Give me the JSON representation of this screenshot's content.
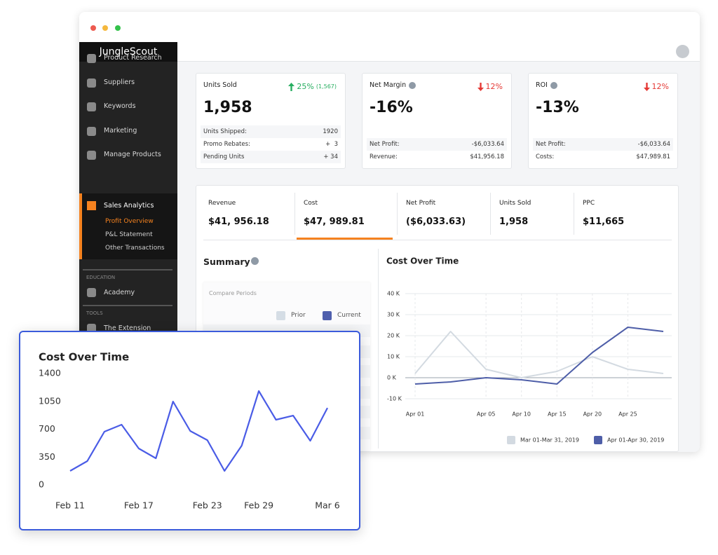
{
  "window": {
    "brand": "JungleScout"
  },
  "sidebar": {
    "items": [
      "Product Research",
      "Suppliers",
      "Keywords",
      "Marketing",
      "Manage Products"
    ],
    "active": {
      "label": "Sales Analytics",
      "subitems": [
        "Profit Overview",
        "P&L Statement",
        "Other Transactions"
      ]
    },
    "sections": [
      {
        "heading": "EDUCATION",
        "items": [
          "Academy"
        ]
      },
      {
        "heading": "TOOLS",
        "items": [
          "The Extension"
        ]
      }
    ]
  },
  "kpi_cards": [
    {
      "title": "Units Sold",
      "direction": "up",
      "change": "25%",
      "change_detail": "(1,567)",
      "value": "1,958",
      "rows": [
        [
          "Units Shipped:",
          "1920"
        ],
        [
          "Promo Rebates:",
          "+  3"
        ],
        [
          "Pending Units",
          "+ 34"
        ]
      ]
    },
    {
      "title": "Net Margin",
      "direction": "down",
      "change": "12%",
      "value": "-16%",
      "rows": [
        [
          "Net Profit:",
          "-$6,033.64"
        ],
        [
          "Revenue:",
          "$41,956.18"
        ]
      ]
    },
    {
      "title": "ROI",
      "direction": "down",
      "change": "12%",
      "value": "-13%",
      "rows": [
        [
          "Net Profit:",
          "-$6,033.64"
        ],
        [
          "Costs:",
          "$47,989.81"
        ]
      ]
    }
  ],
  "tabs": [
    {
      "label": "Revenue",
      "value": "$41, 956.18"
    },
    {
      "label": "Cost",
      "value": "$47, 989.81",
      "active": true
    },
    {
      "label": "Net Profit",
      "value": "($6,033.63)"
    },
    {
      "label": "Units Sold",
      "value": "1,958"
    },
    {
      "label": "PPC",
      "value": "$11,665"
    }
  ],
  "summary": {
    "title": "Summary",
    "compare_label": "Compare Periods",
    "legend": [
      {
        "name": "Prior",
        "color": "#d5dde5"
      },
      {
        "name": "Current",
        "color": "#4f5fad"
      }
    ]
  },
  "chart_data": [
    {
      "type": "line",
      "title": "Cost Over Time",
      "categories": [
        "Apr 01",
        null,
        "Apr 05",
        "Apr 10",
        "Apr 15",
        "Apr 20",
        "Apr 25",
        null
      ],
      "series": [
        {
          "name": "Mar 01-Mar 31, 2019",
          "color": "#d3dae1",
          "values": [
            2000,
            22000,
            4000,
            0,
            3000,
            10000,
            4000,
            2000
          ]
        },
        {
          "name": "Apr 01-Apr 30, 2019",
          "color": "#4e5ea8",
          "values": [
            -3000,
            -2000,
            0,
            -1000,
            -3000,
            12000,
            24000,
            22000
          ]
        }
      ],
      "ylim": [
        -10000,
        40000
      ],
      "yticks": [
        {
          "value": -10000,
          "label": "-10 K"
        },
        {
          "value": 0,
          "label": "0 K"
        },
        {
          "value": 10000,
          "label": "10  K"
        },
        {
          "value": 20000,
          "label": "20 K"
        },
        {
          "value": 30000,
          "label": "30 K"
        },
        {
          "value": 40000,
          "label": "40 K"
        }
      ],
      "grid": true,
      "legend": "bottom"
    },
    {
      "type": "line",
      "title": "Cost Over Time",
      "categories": [
        "Feb 11",
        null,
        null,
        null,
        "Feb 17",
        null,
        null,
        null,
        "Feb 23",
        null,
        null,
        "Feb 29",
        null,
        null,
        null,
        "Mar 6"
      ],
      "values": [
        176,
        299,
        669,
        757,
        458,
        335,
        1048,
        678,
        563,
        176,
        493,
        1180,
        819,
        871,
        555,
        968
      ],
      "color": "#4a5ce6",
      "ylim": [
        0,
        1400
      ],
      "yticks": [
        0,
        350,
        700,
        1050,
        1400
      ],
      "grid": false
    }
  ]
}
